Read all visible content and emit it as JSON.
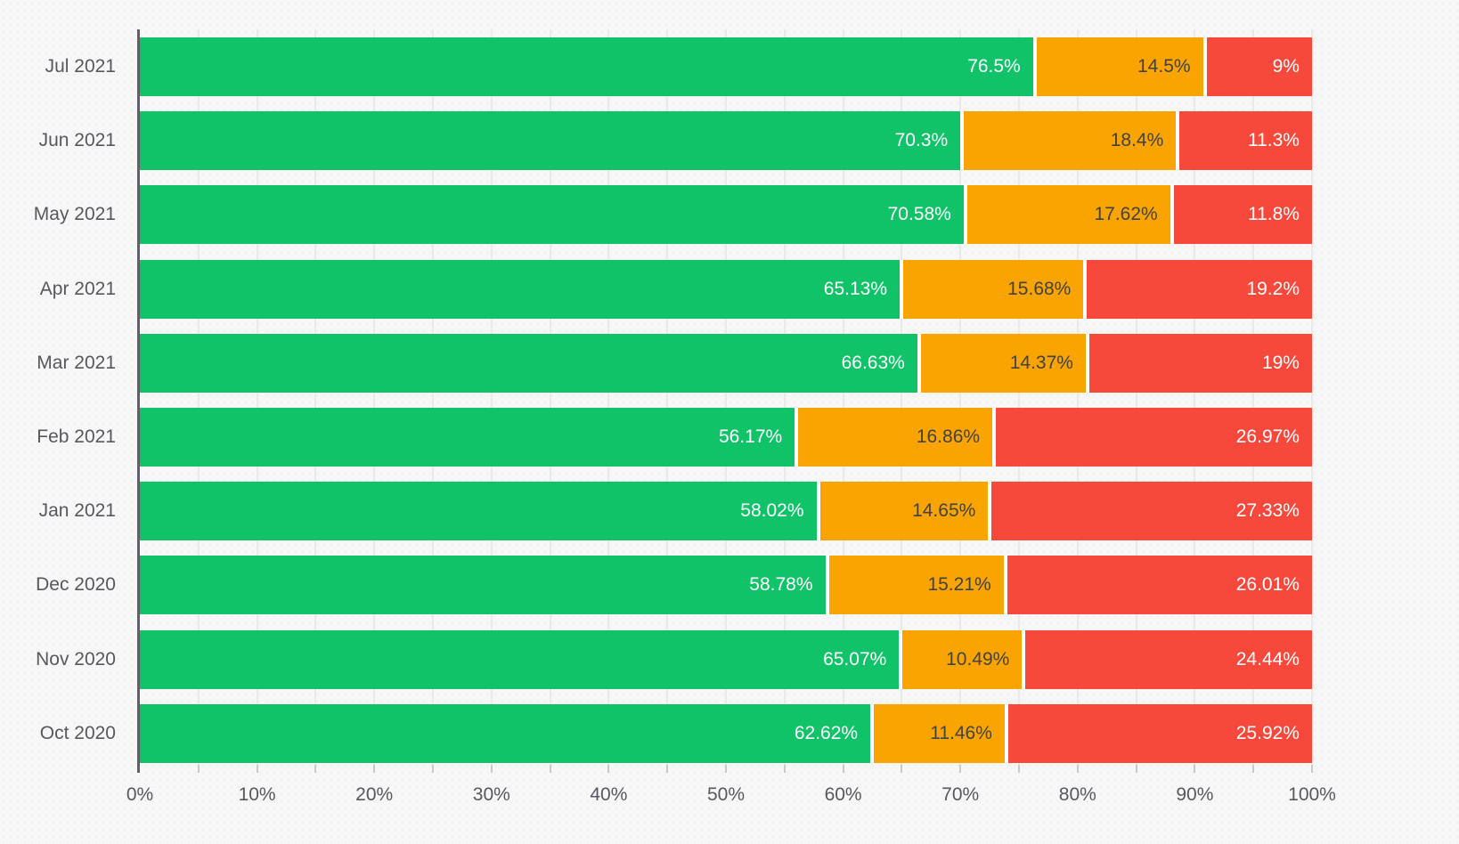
{
  "chart_data": {
    "type": "bar",
    "orientation": "horizontal",
    "stacked": true,
    "title": "",
    "xlabel": "",
    "ylabel": "",
    "unit": "%",
    "categories": [
      "Jul 2021",
      "Jun 2021",
      "May 2021",
      "Apr 2021",
      "Mar 2021",
      "Feb 2021",
      "Jan 2021",
      "Dec 2020",
      "Nov 2020",
      "Oct 2020"
    ],
    "series": [
      {
        "name": "green-success",
        "color": "#10C368",
        "label_color": "#ffffff",
        "values": [
          76.5,
          70.3,
          70.58,
          65.13,
          66.63,
          56.17,
          58.02,
          58.78,
          65.07,
          62.62
        ],
        "labels": [
          "76.5%",
          "70.3%",
          "70.58%",
          "65.13%",
          "66.63%",
          "56.17%",
          "58.02%",
          "58.78%",
          "65.07%",
          "62.62%"
        ]
      },
      {
        "name": "orange-warning",
        "color": "#FAA402",
        "label_color": "#424242",
        "values": [
          14.5,
          18.4,
          17.62,
          15.68,
          14.37,
          16.86,
          14.65,
          15.21,
          10.49,
          11.46
        ],
        "labels": [
          "14.5%",
          "18.4%",
          "17.62%",
          "15.68%",
          "14.37%",
          "16.86%",
          "14.65%",
          "15.21%",
          "10.49%",
          "11.46%"
        ]
      },
      {
        "name": "red-error",
        "color": "#F6493C",
        "label_color": "#ffffff",
        "values": [
          9,
          11.3,
          11.8,
          19.2,
          19,
          26.97,
          27.33,
          26.01,
          24.44,
          25.92
        ],
        "labels": [
          "9%",
          "11.3%",
          "11.8%",
          "19.2%",
          "19%",
          "26.97%",
          "27.33%",
          "26.01%",
          "24.44%",
          "25.92%"
        ]
      }
    ],
    "x_ticks": [
      "0%",
      "10%",
      "20%",
      "30%",
      "40%",
      "50%",
      "60%",
      "70%",
      "80%",
      "90%",
      "100%"
    ],
    "xlim": [
      0,
      100
    ],
    "grid": true,
    "gridline_step_percent": 5,
    "legend": "none"
  },
  "colors": {
    "background": "#f7f7f7",
    "gridline": "#e9e9e9",
    "axis_line": "#5f6166",
    "tick_mark": "#c9c9c9",
    "axis_label_text": "#56585d"
  }
}
